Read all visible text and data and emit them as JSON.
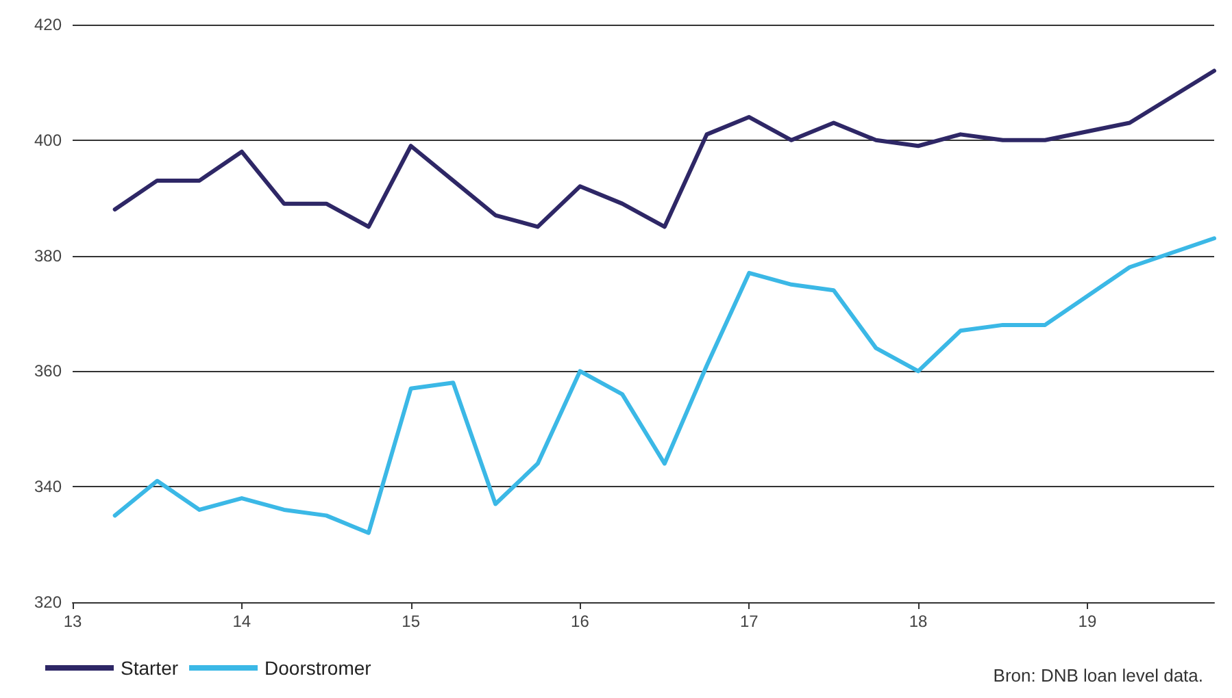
{
  "chart_data": {
    "type": "line",
    "xlim": [
      13,
      19.75
    ],
    "xticks": [
      13,
      14,
      15,
      16,
      17,
      18,
      19
    ],
    "ylim": [
      320,
      420
    ],
    "yticks": [
      320,
      340,
      360,
      380,
      400,
      420
    ],
    "grid": "y",
    "legend": "bottom left",
    "marker": "none",
    "line_style": "solid",
    "annotations": [
      "Bron: DNB loan level data."
    ],
    "series": [
      {
        "name": "Starter",
        "color": "#2e2766",
        "x": [
          13.25,
          13.5,
          13.75,
          14,
          14.25,
          14.5,
          14.75,
          15,
          15.25,
          15.5,
          15.75,
          16,
          16.25,
          16.5,
          16.75,
          17,
          17.25,
          17.5,
          17.75,
          18,
          18.25,
          18.5,
          18.75,
          19.25,
          19.75
        ],
        "values": [
          388,
          393,
          393,
          398,
          389,
          389,
          385,
          399,
          393,
          387,
          385,
          392,
          389,
          385,
          401,
          404,
          400,
          403,
          400,
          399,
          401,
          400,
          400,
          403,
          412
        ]
      },
      {
        "name": "Doorstromer",
        "color": "#3bb8e6",
        "x": [
          13.25,
          13.5,
          13.75,
          14,
          14.25,
          14.5,
          14.75,
          15,
          15.25,
          15.5,
          15.75,
          16,
          16.25,
          16.5,
          16.75,
          17,
          17.25,
          17.5,
          17.75,
          18,
          18.25,
          18.5,
          18.75,
          19.25,
          19.75
        ],
        "values": [
          335,
          341,
          336,
          338,
          336,
          335,
          332,
          357,
          358,
          337,
          344,
          360,
          356,
          344,
          361,
          377,
          375,
          374,
          364,
          360,
          367,
          368,
          368,
          378,
          383
        ]
      }
    ]
  }
}
